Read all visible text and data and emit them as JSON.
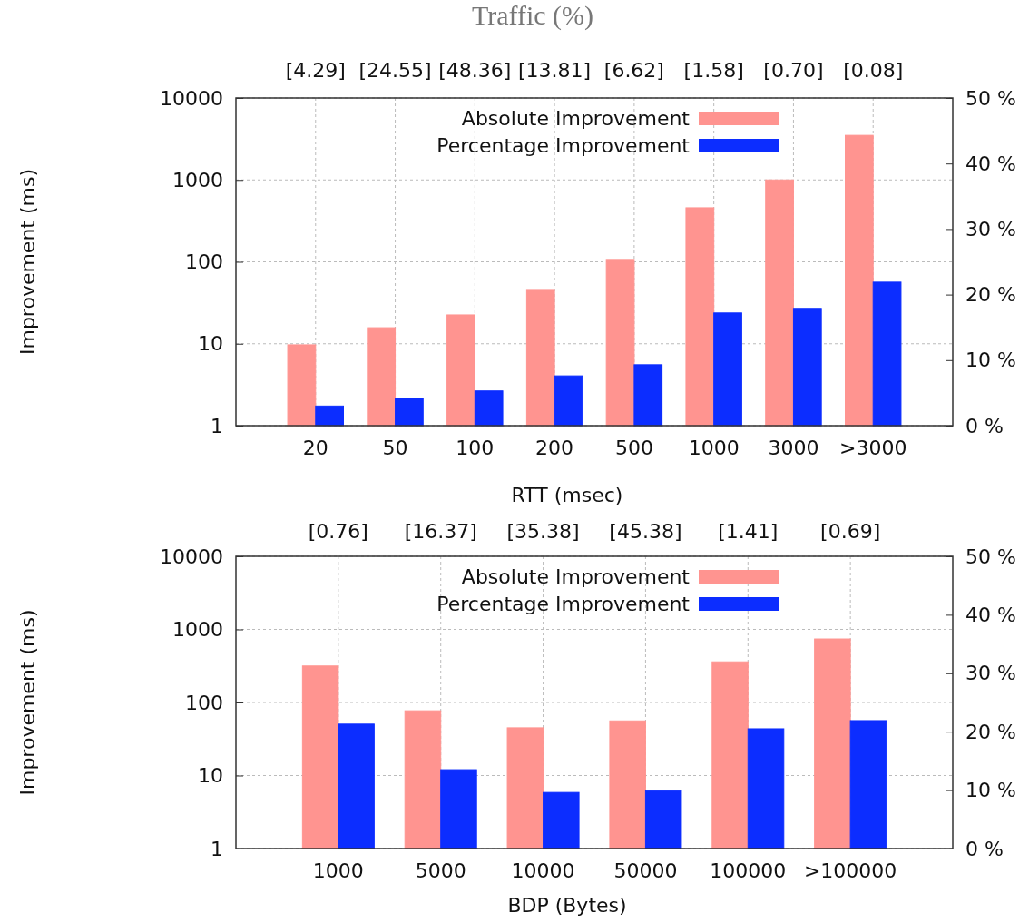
{
  "chart_data": [
    {
      "type": "bar",
      "title": "Traffic (%)",
      "xlabel": "RTT (msec)",
      "ylabel": "Improvement (ms)",
      "categories": [
        "20",
        "50",
        "100",
        "200",
        "500",
        "1000",
        "3000",
        ">3000"
      ],
      "series": [
        {
          "name": "Absolute Improvement",
          "color": "#ff9490",
          "values": [
            9.7,
            15.7,
            22.5,
            46,
            107,
            457,
            1000,
            3500
          ]
        },
        {
          "name": "Percentage Improvement",
          "color": "#0c2dff",
          "axis": "y2",
          "values": [
            3.0,
            4.2,
            5.3,
            7.6,
            9.3,
            17.2,
            17.9,
            21.9
          ]
        }
      ],
      "log": "y",
      "ylim": [
        1,
        10000
      ],
      "yticks": [
        1,
        10,
        100,
        1000,
        10000
      ],
      "y2lim": [
        0,
        50
      ],
      "y2ticks": [
        {
          "value": 0,
          "label": "0 %"
        },
        {
          "value": 10,
          "label": "10 %"
        },
        {
          "value": 20,
          "label": "20 %"
        },
        {
          "value": 30,
          "label": "30 %"
        },
        {
          "value": 40,
          "label": "40 %"
        },
        {
          "value": 50,
          "label": "50 %"
        }
      ],
      "grid": true,
      "legend": "top",
      "annotations": [
        "[4.29]",
        "[24.55]",
        "[48.36]",
        "[13.81]",
        "[6.62]",
        "[1.58]",
        "[0.70]",
        "[0.08]"
      ]
    },
    {
      "type": "bar",
      "xlabel": "BDP (Bytes)",
      "ylabel": "Improvement (ms)",
      "categories": [
        "1000",
        "5000",
        "10000",
        "50000",
        "100000",
        ">100000"
      ],
      "series": [
        {
          "name": "Absolute Improvement",
          "color": "#ff9490",
          "values": [
            316,
            77,
            45,
            56,
            360,
            740
          ]
        },
        {
          "name": "Percentage Improvement",
          "color": "#0c2dff",
          "axis": "y2",
          "values": [
            21.3,
            13.5,
            9.6,
            9.9,
            20.5,
            21.9
          ]
        }
      ],
      "log": "y",
      "ylim": [
        1,
        10000
      ],
      "yticks": [
        1,
        10,
        100,
        1000,
        10000
      ],
      "y2lim": [
        0,
        50
      ],
      "y2ticks": [
        {
          "value": 0,
          "label": "0 %"
        },
        {
          "value": 10,
          "label": "10 %"
        },
        {
          "value": 20,
          "label": "20 %"
        },
        {
          "value": 30,
          "label": "30 %"
        },
        {
          "value": 40,
          "label": "40 %"
        },
        {
          "value": 50,
          "label": "50 %"
        }
      ],
      "grid": true,
      "legend": "top",
      "annotations": [
        "[0.76]",
        "[16.37]",
        "[35.38]",
        "[45.38]",
        "[1.41]",
        "[0.69]"
      ]
    }
  ]
}
